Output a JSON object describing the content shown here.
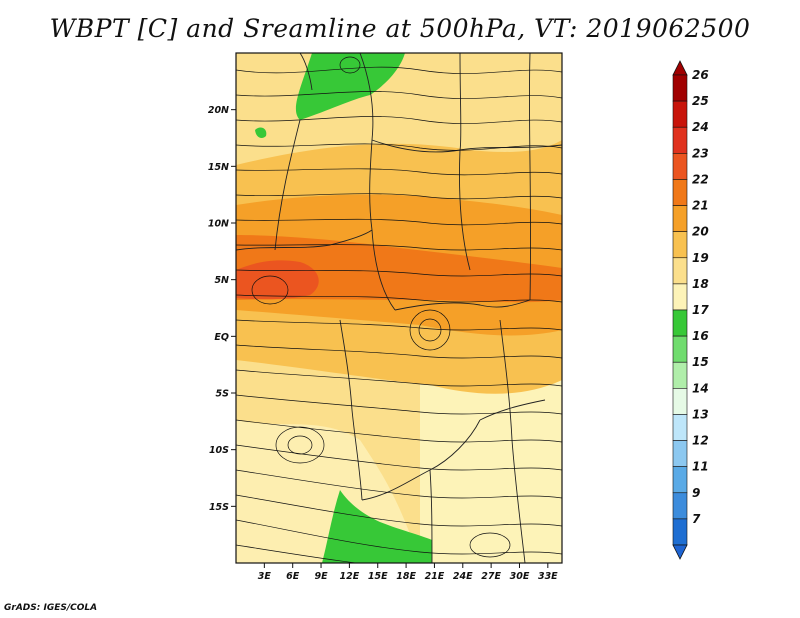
{
  "title": "WBPT [C] and Sreamline at 500hPa, VT: 2019062500",
  "footer": "GrADS: IGES/COLA",
  "map": {
    "lon_range": [
      0,
      34.5
    ],
    "lat_range": [
      -20,
      25
    ],
    "lat_ticks": [
      {
        "value": 20,
        "label": "20N"
      },
      {
        "value": 15,
        "label": "15N"
      },
      {
        "value": 10,
        "label": "10N"
      },
      {
        "value": 5,
        "label": "5N"
      },
      {
        "value": 0,
        "label": "EQ"
      },
      {
        "value": -5,
        "label": "5S"
      },
      {
        "value": -10,
        "label": "10S"
      },
      {
        "value": -15,
        "label": "15S"
      }
    ],
    "lon_ticks": [
      {
        "value": 3,
        "label": "3E"
      },
      {
        "value": 6,
        "label": "6E"
      },
      {
        "value": 9,
        "label": "9E"
      },
      {
        "value": 12,
        "label": "12E"
      },
      {
        "value": 15,
        "label": "15E"
      },
      {
        "value": 18,
        "label": "18E"
      },
      {
        "value": 21,
        "label": "21E"
      },
      {
        "value": 24,
        "label": "24E"
      },
      {
        "value": 27,
        "label": "27E"
      },
      {
        "value": 30,
        "label": "30E"
      },
      {
        "value": 33,
        "label": "33E"
      }
    ]
  },
  "colorbar": {
    "levels": [
      {
        "label": "26",
        "color": "#a00000"
      },
      {
        "label": "25",
        "color": "#c8140a"
      },
      {
        "label": "24",
        "color": "#e0321e"
      },
      {
        "label": "23",
        "color": "#eb5520"
      },
      {
        "label": "22",
        "color": "#f07818"
      },
      {
        "label": "21",
        "color": "#f5a028"
      },
      {
        "label": "20",
        "color": "#f8c150"
      },
      {
        "label": "19",
        "color": "#fbdf8c"
      },
      {
        "label": "18",
        "color": "#fdf3b8"
      },
      {
        "label": "17",
        "color": "#37c837"
      },
      {
        "label": "16",
        "color": "#70dc6e"
      },
      {
        "label": "15",
        "color": "#b0eeaa"
      },
      {
        "label": "14",
        "color": "#e6fae6"
      },
      {
        "label": "13",
        "color": "#bee6fa"
      },
      {
        "label": "12",
        "color": "#8cc8f0"
      },
      {
        "label": "11",
        "color": "#5aaae6"
      },
      {
        "label": "9",
        "color": "#3c8cdc"
      },
      {
        "label": "7",
        "color": "#1e6ed2"
      }
    ],
    "bottom_color": "#1e64d2"
  }
}
